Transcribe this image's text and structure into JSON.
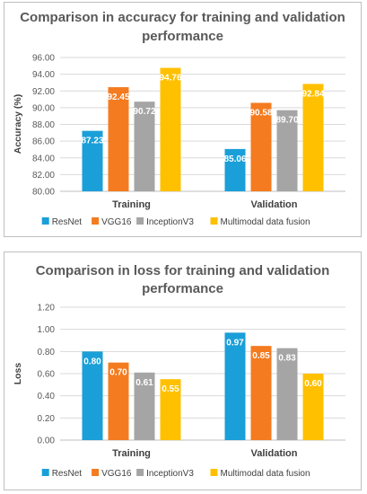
{
  "colors": [
    "#1a9fd9",
    "#f47b20",
    "#a5a5a5",
    "#ffc000"
  ],
  "chart_data": [
    {
      "type": "bar",
      "title": "Comparison in accuracy for training and validation performance",
      "title_lines": [
        "Comparison in accuracy for training and validation",
        "performance"
      ],
      "xlabel": "",
      "ylabel": "Accuracy (%)",
      "ylim": [
        80,
        96
      ],
      "yticks": [
        "80.00",
        "82.00",
        "84.00",
        "86.00",
        "88.00",
        "90.00",
        "92.00",
        "94.00",
        "96.00"
      ],
      "categories": [
        "Training",
        "Validation"
      ],
      "series": [
        {
          "name": "ResNet",
          "values": [
            87.23,
            85.06
          ],
          "labels": [
            "87.23",
            "85.06"
          ]
        },
        {
          "name": "VGG16",
          "values": [
            92.45,
            90.58
          ],
          "labels": [
            "92.45",
            "90.58"
          ]
        },
        {
          "name": "InceptionV3",
          "values": [
            90.72,
            89.7
          ],
          "labels": [
            "90.72",
            "89.70"
          ]
        },
        {
          "name": "Multimodal data fusion",
          "values": [
            94.76,
            92.84
          ],
          "labels": [
            "94.76",
            "92.84"
          ]
        }
      ],
      "grid": true,
      "legend": "bottom"
    },
    {
      "type": "bar",
      "title": "Comparison in loss for training and validation performance",
      "title_lines": [
        "Comparison in loss for training and validation",
        "performance"
      ],
      "xlabel": "",
      "ylabel": "Loss",
      "ylim": [
        0,
        1.2
      ],
      "yticks": [
        "0.00",
        "0.20",
        "0.40",
        "0.60",
        "0.80",
        "1.00",
        "1.20"
      ],
      "categories": [
        "Training",
        "Validation"
      ],
      "series": [
        {
          "name": "ResNet",
          "values": [
            0.8,
            0.97
          ],
          "labels": [
            "0.80",
            "0.97"
          ]
        },
        {
          "name": "VGG16",
          "values": [
            0.7,
            0.85
          ],
          "labels": [
            "0.70",
            "0.85"
          ]
        },
        {
          "name": "InceptionV3",
          "values": [
            0.61,
            0.83
          ],
          "labels": [
            "0.61",
            "0.83"
          ]
        },
        {
          "name": "Multimodal data fusion",
          "values": [
            0.55,
            0.6
          ],
          "labels": [
            "0.55",
            "0.60"
          ]
        }
      ],
      "grid": true,
      "legend": "bottom"
    }
  ]
}
